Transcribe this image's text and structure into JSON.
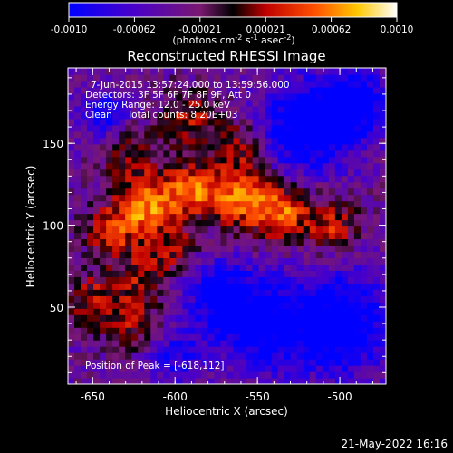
{
  "colorbar": {
    "tick_labels": [
      "-0.0010",
      "-0.00062",
      "-0.00021",
      "0.00021",
      "0.00062",
      "0.0010"
    ],
    "unit_label": "(photons cm",
    "unit_sup1": "-2",
    "unit_mid": " s",
    "unit_sup2": "-1",
    "unit_mid2": " asec",
    "unit_sup3": "-2",
    "unit_end": ")"
  },
  "footer": {
    "timestamp": "21-May-2022 16:16"
  },
  "chart_data": {
    "type": "heatmap",
    "title": "Reconstructed RHESSI Image",
    "xlabel": "Heliocentric X (arcsec)",
    "ylabel": "Heliocentric Y (arcsec)",
    "xlim": [
      -665,
      -472
    ],
    "ylim": [
      3,
      196
    ],
    "x_ticks": [
      -650,
      -600,
      -550,
      -500
    ],
    "x_tick_labels": [
      "-650",
      "-600",
      "-550",
      "-500"
    ],
    "y_ticks": [
      50,
      100,
      150
    ],
    "y_tick_labels": [
      "50",
      "100",
      "150"
    ],
    "color_range": [
      -0.001,
      0.001
    ],
    "colormap": "blue-purple-red-orange-yellow-white",
    "annotations": [
      "7-Jun-2015 13:57:24.000 to 13:59:56.000",
      "Detectors: 3F 5F 6F 7F 8F 9F, Att 0",
      "Energy Range: 12.0 - 25.0 keV",
      "Clean     Total counts: 8.20E+03"
    ],
    "peak_label": "Position of Peak = [-618,112]",
    "peak": {
      "x": -618,
      "y": 112
    },
    "sources": [
      {
        "x": -618,
        "y": 112,
        "sigma": 14,
        "amp": 0.00095
      },
      {
        "x": -590,
        "y": 122,
        "sigma": 11,
        "amp": 0.0008
      },
      {
        "x": -560,
        "y": 118,
        "sigma": 14,
        "amp": 0.00085
      },
      {
        "x": -535,
        "y": 108,
        "sigma": 12,
        "amp": 0.0008
      },
      {
        "x": -505,
        "y": 100,
        "sigma": 11,
        "amp": 0.00065
      },
      {
        "x": -640,
        "y": 95,
        "sigma": 10,
        "amp": 0.0006
      },
      {
        "x": -630,
        "y": 150,
        "sigma": 12,
        "amp": 0.0006
      },
      {
        "x": -590,
        "y": 165,
        "sigma": 12,
        "amp": 0.00055
      },
      {
        "x": -560,
        "y": 150,
        "sigma": 10,
        "amp": 0.0005
      },
      {
        "x": -650,
        "y": 55,
        "sigma": 12,
        "amp": 0.00055
      },
      {
        "x": -625,
        "y": 40,
        "sigma": 12,
        "amp": 0.00045
      },
      {
        "x": -620,
        "y": 70,
        "sigma": 11,
        "amp": 0.0005
      },
      {
        "x": -600,
        "y": 85,
        "sigma": 10,
        "amp": 0.00045
      }
    ],
    "dips": [
      {
        "x": -520,
        "y": 160,
        "sigma": 20,
        "amp": -0.0009
      },
      {
        "x": -490,
        "y": 175,
        "sigma": 14,
        "amp": -0.0008
      },
      {
        "x": -500,
        "y": 40,
        "sigma": 22,
        "amp": -0.0009
      },
      {
        "x": -550,
        "y": 40,
        "sigma": 20,
        "amp": -0.0008
      },
      {
        "x": -640,
        "y": 165,
        "sigma": 12,
        "amp": -0.0007
      },
      {
        "x": -575,
        "y": 60,
        "sigma": 14,
        "amp": -0.0006
      },
      {
        "x": -600,
        "y": 20,
        "sigma": 12,
        "amp": -0.0005
      }
    ]
  }
}
